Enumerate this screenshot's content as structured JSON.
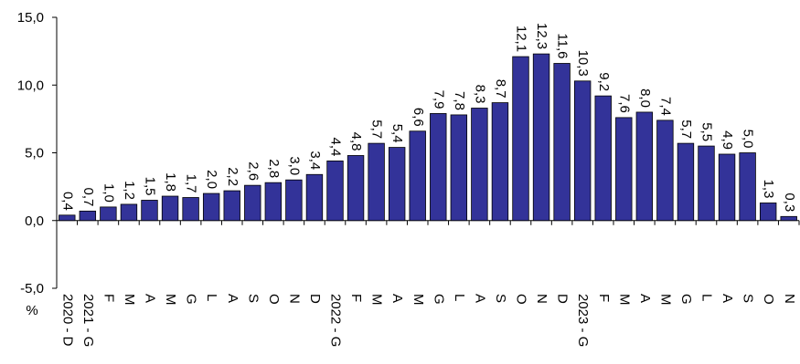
{
  "chart_data": {
    "type": "bar",
    "unit": "%",
    "ylim": [
      -5,
      15
    ],
    "yticks": [
      "15,0",
      "10,0",
      "5,0",
      "0,0",
      "-5,0"
    ],
    "ytick_values": [
      15,
      10,
      5,
      0,
      -5
    ],
    "bar_color": "#333399",
    "categories": [
      "2020 - D",
      "2021 - G",
      "F",
      "M",
      "A",
      "M",
      "G",
      "L",
      "A",
      "S",
      "O",
      "N",
      "D",
      "2022 - G",
      "F",
      "M",
      "A",
      "M",
      "G",
      "L",
      "A",
      "S",
      "O",
      "N",
      "D",
      "2023 - G",
      "F",
      "M",
      "A",
      "M",
      "G",
      "L",
      "A",
      "S",
      "O",
      "N"
    ],
    "values": [
      0.4,
      0.7,
      1.0,
      1.2,
      1.5,
      1.8,
      1.7,
      2.0,
      2.2,
      2.6,
      2.8,
      3.0,
      3.4,
      4.4,
      4.8,
      5.7,
      5.4,
      6.6,
      7.9,
      7.8,
      8.3,
      8.7,
      12.1,
      12.3,
      11.6,
      10.3,
      9.2,
      7.6,
      8.0,
      7.4,
      5.7,
      5.5,
      4.9,
      5.0,
      1.3,
      0.3
    ],
    "value_labels": [
      "0,4",
      "0,7",
      "1,0",
      "1,2",
      "1,5",
      "1,8",
      "1,7",
      "2,0",
      "2,2",
      "2,6",
      "2,8",
      "3,0",
      "3,4",
      "4,4",
      "4,8",
      "5,7",
      "5,4",
      "6,6",
      "7,9",
      "7,8",
      "8,3",
      "8,7",
      "12,1",
      "12,3",
      "11,6",
      "10,3",
      "9,2",
      "7,6",
      "8,0",
      "7,4",
      "5,7",
      "5,5",
      "4,9",
      "5,0",
      "1,3",
      "0,3"
    ]
  }
}
